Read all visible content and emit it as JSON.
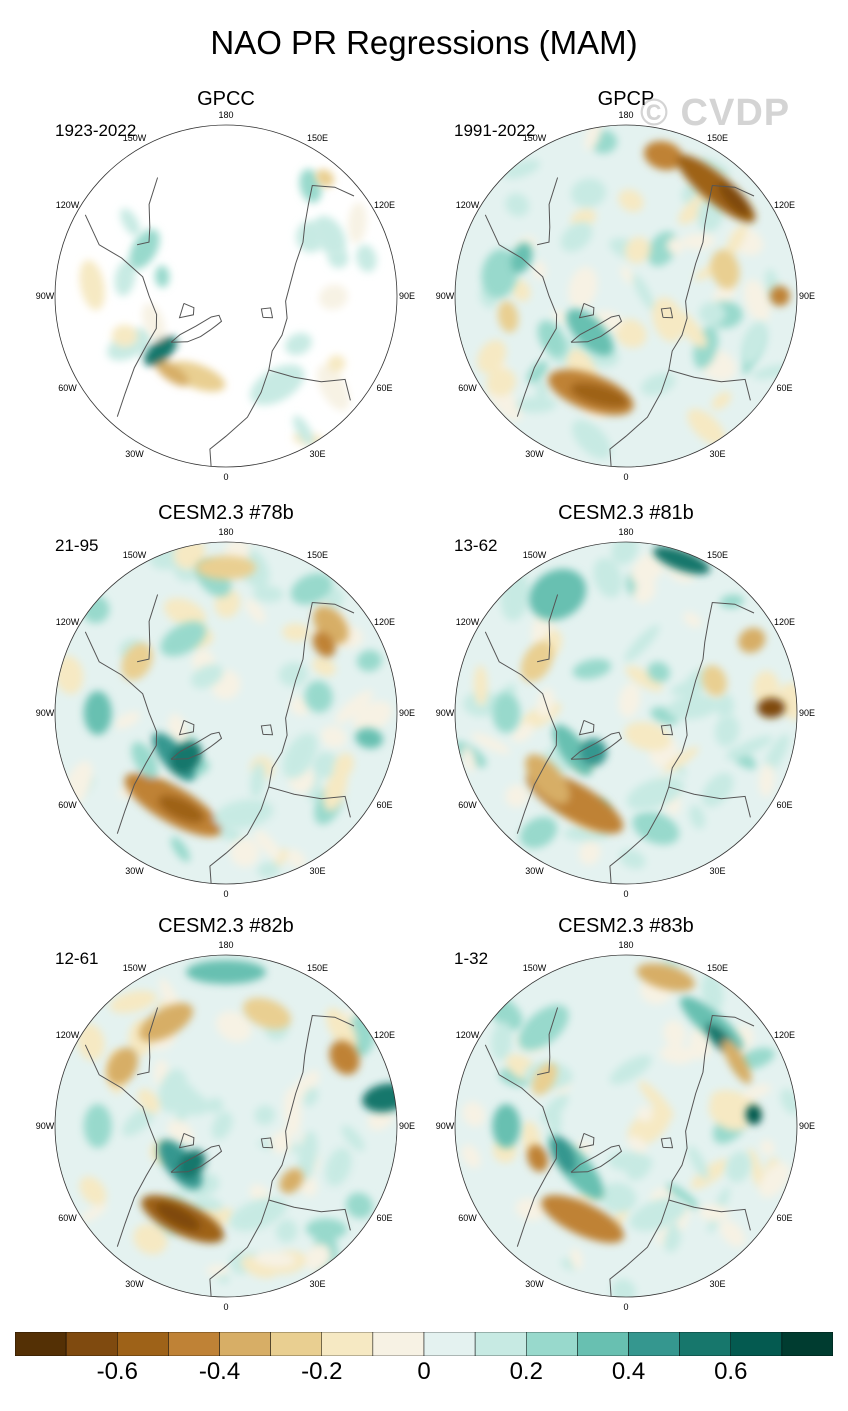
{
  "title": "NAO PR Regressions (MAM)",
  "watermark": "© CVDP",
  "panels": [
    {
      "name": "GPCC",
      "period": "1923-2022",
      "type": "obs-land"
    },
    {
      "name": "GPCP",
      "period": "1991-2022",
      "type": "obs"
    },
    {
      "name": "CESM2.3 #78b",
      "period": "21-95",
      "type": "model"
    },
    {
      "name": "CESM2.3 #81b",
      "period": "13-62",
      "type": "model"
    },
    {
      "name": "CESM2.3 #82b",
      "period": "12-61",
      "type": "model"
    },
    {
      "name": "CESM2.3 #83b",
      "period": "1-32",
      "type": "model"
    }
  ],
  "longitude_labels": [
    "180",
    "150E",
    "120E",
    "90E",
    "60E",
    "30E",
    "0",
    "30W",
    "60W",
    "90W",
    "120W",
    "150W"
  ],
  "colorbar": {
    "colors": [
      "#543005",
      "#7f4a0f",
      "#9e6218",
      "#bf8236",
      "#d7ae66",
      "#e9cf91",
      "#f6e9c3",
      "#f7f2e4",
      "#e4f2f0",
      "#c7eae3",
      "#98d9cc",
      "#68c0b1",
      "#35978f",
      "#17776c",
      "#045a50",
      "#003c30"
    ],
    "labels": [
      "-0.6",
      "-0.4",
      "-0.2",
      "0",
      "0.2",
      "0.4",
      "0.6"
    ],
    "label_positions": [
      2,
      4,
      6,
      8,
      10,
      12,
      14
    ]
  }
}
